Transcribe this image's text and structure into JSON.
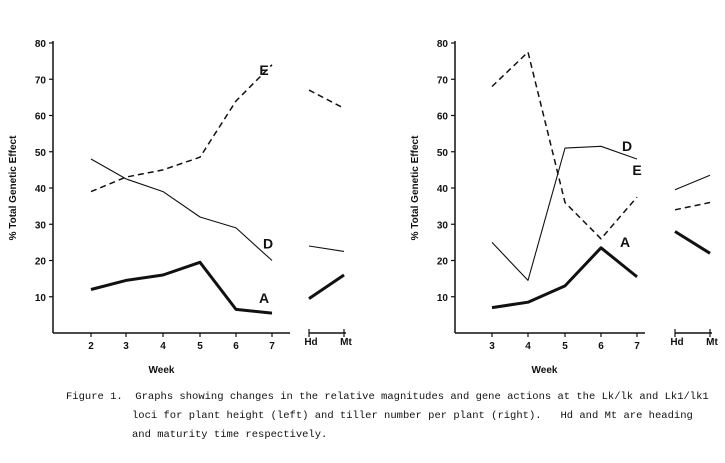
{
  "caption": {
    "lines": [
      "Figure 1.  Graphs showing changes in the relative magnitudes and gene actions at the Lk/lk and Lk1/lk1",
      "loci for plant height (left) and tiller number per plant (right).   Hd and Mt are heading",
      "and maturity time respectively."
    ]
  },
  "chart_data": [
    {
      "type": "line",
      "panel": "left",
      "ylabel": "% Total Genetic Effect",
      "xlabel": "Week",
      "ylim": [
        0,
        80
      ],
      "yticks": [
        "10",
        "20",
        "30",
        "40",
        "50",
        "60",
        "70",
        "80"
      ],
      "x": [
        "2",
        "3",
        "4",
        "5",
        "6",
        "7"
      ],
      "extra_x": [
        "Hd",
        "Mt"
      ],
      "grid": false,
      "series": [
        {
          "name": "E",
          "style": "dashed",
          "values": [
            39,
            43,
            45,
            48.5,
            64,
            74
          ],
          "extra_values": [
            67,
            62
          ]
        },
        {
          "name": "D",
          "style": "thin",
          "values": [
            48,
            42.5,
            39,
            32,
            29,
            20
          ],
          "extra_values": [
            24,
            22.5
          ]
        },
        {
          "name": "A",
          "style": "thick",
          "values": [
            12,
            14.5,
            16,
            19.5,
            6.5,
            5.5
          ],
          "extra_values": [
            9.5,
            16
          ]
        }
      ]
    },
    {
      "type": "line",
      "panel": "right",
      "ylabel": "% Total Genetic Effect",
      "xlabel": "Week",
      "ylim": [
        0,
        80
      ],
      "yticks": [
        "10",
        "20",
        "30",
        "40",
        "50",
        "60",
        "70",
        "80"
      ],
      "x": [
        "3",
        "4",
        "5",
        "6",
        "7"
      ],
      "extra_x": [
        "Hd",
        "Mt"
      ],
      "grid": false,
      "series": [
        {
          "name": "E",
          "style": "dashed",
          "values": [
            68,
            77.5,
            36,
            26,
            37.5
          ],
          "extra_values": [
            34,
            36
          ]
        },
        {
          "name": "D",
          "style": "thin",
          "values": [
            25,
            14.5,
            51,
            51.5,
            48
          ],
          "extra_values": [
            39.5,
            43.5
          ]
        },
        {
          "name": "A",
          "style": "thick",
          "values": [
            7,
            8.5,
            13,
            23.5,
            15.5
          ],
          "extra_values": [
            28,
            22
          ]
        }
      ]
    }
  ]
}
